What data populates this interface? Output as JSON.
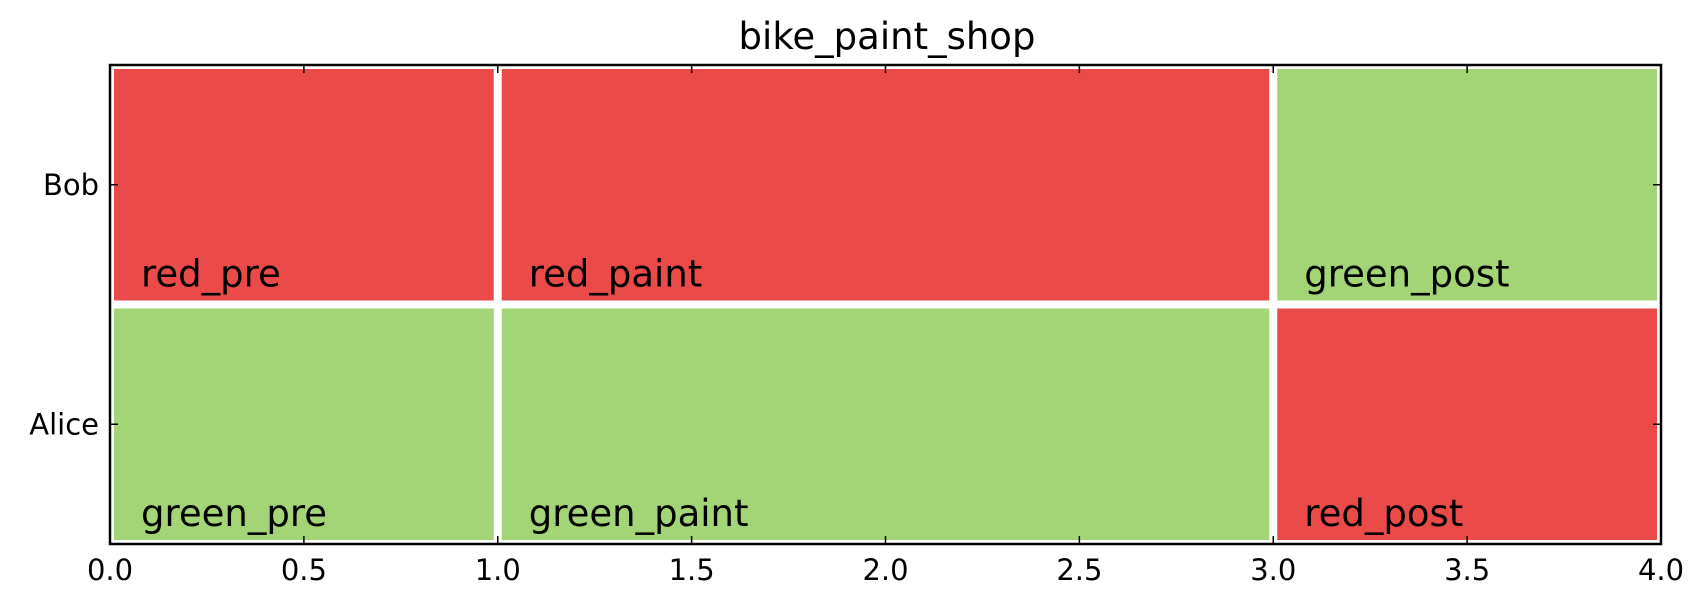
{
  "chart_data": {
    "type": "bar",
    "orientation": "horizontal-gantt",
    "title": "bike_paint_shop",
    "xlabel": "",
    "ylabel": "",
    "xlim": [
      0.0,
      4.0
    ],
    "x_ticks": [
      "0.0",
      "0.5",
      "1.0",
      "1.5",
      "2.0",
      "2.5",
      "3.0",
      "3.5",
      "4.0"
    ],
    "categories": [
      "Alice",
      "Bob"
    ],
    "colors": {
      "red": "#EA4A48",
      "green": "#A3D476"
    },
    "tasks": [
      {
        "row": "Bob",
        "label": "red_pre",
        "start": 0.0,
        "end": 1.0,
        "color": "red"
      },
      {
        "row": "Bob",
        "label": "red_paint",
        "start": 1.0,
        "end": 3.0,
        "color": "red"
      },
      {
        "row": "Bob",
        "label": "green_post",
        "start": 3.0,
        "end": 4.0,
        "color": "green"
      },
      {
        "row": "Alice",
        "label": "green_pre",
        "start": 0.0,
        "end": 1.0,
        "color": "green"
      },
      {
        "row": "Alice",
        "label": "green_paint",
        "start": 1.0,
        "end": 3.0,
        "color": "green"
      },
      {
        "row": "Alice",
        "label": "red_post",
        "start": 3.0,
        "end": 4.0,
        "color": "red"
      }
    ],
    "grid": false,
    "legend": "none"
  }
}
